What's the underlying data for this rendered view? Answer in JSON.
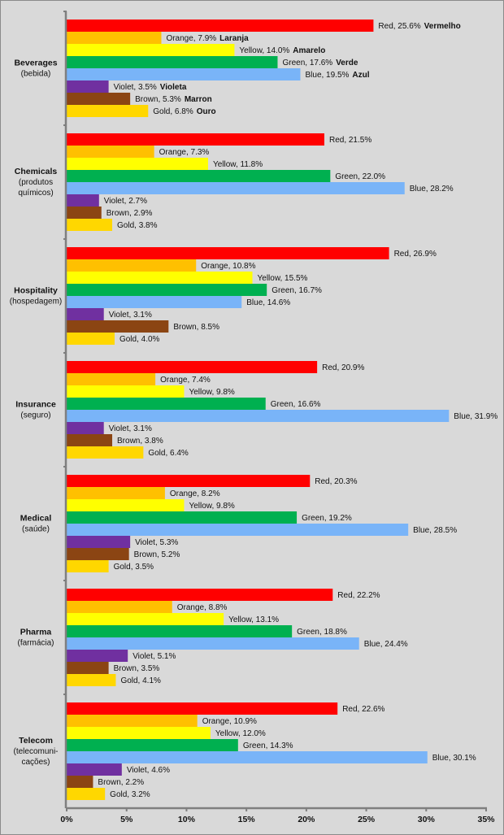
{
  "chart_data": {
    "type": "bar",
    "orientation": "horizontal",
    "title": "",
    "xlabel": "",
    "ylabel": "",
    "xlim": [
      0,
      35
    ],
    "x_tick_labels": [
      "0%",
      "5%",
      "10%",
      "15%",
      "20%",
      "25%",
      "30%",
      "35%"
    ],
    "grid": false,
    "legend": "none (inline data labels)",
    "series_colors": {
      "Red": "#ff0000",
      "Orange": "#ffc000",
      "Yellow": "#ffff00",
      "Green": "#00b050",
      "Blue": "#79b4f8",
      "Violet": "#7030a0",
      "Brown": "#8b4513",
      "Gold": "#ffd700"
    },
    "series_portuguese": {
      "Red": "Vermelho",
      "Orange": "Laranja",
      "Yellow": "Amarelo",
      "Green": "Verde",
      "Blue": "Azul",
      "Violet": "Violeta",
      "Brown": "Marron",
      "Gold": "Ouro"
    },
    "categories": [
      {
        "name": "Beverages",
        "sub": [
          "(bebida)"
        ],
        "show_portuguese": true,
        "values": [
          {
            "series": "Red",
            "value": 25.6,
            "label": "Red, 25.6%"
          },
          {
            "series": "Orange",
            "value": 7.9,
            "label": "Orange, 7.9%"
          },
          {
            "series": "Yellow",
            "value": 14.0,
            "label": "Yellow, 14.0%"
          },
          {
            "series": "Green",
            "value": 17.6,
            "label": "Green,  17.6%"
          },
          {
            "series": "Blue",
            "value": 19.5,
            "label": "Blue, 19.5%"
          },
          {
            "series": "Violet",
            "value": 3.5,
            "label": "Violet, 3.5%"
          },
          {
            "series": "Brown",
            "value": 5.3,
            "label": "Brown, 5.3%"
          },
          {
            "series": "Gold",
            "value": 6.8,
            "label": "Gold, 6.8%"
          }
        ]
      },
      {
        "name": "Chemicals",
        "sub": [
          "(produtos",
          "químicos)"
        ],
        "show_portuguese": false,
        "values": [
          {
            "series": "Red",
            "value": 21.5,
            "label": "Red, 21.5%"
          },
          {
            "series": "Orange",
            "value": 7.3,
            "label": "Orange, 7.3%"
          },
          {
            "series": "Yellow",
            "value": 11.8,
            "label": "Yellow, 11.8%"
          },
          {
            "series": "Green",
            "value": 22.0,
            "label": "Green,  22.0%"
          },
          {
            "series": "Blue",
            "value": 28.2,
            "label": "Blue, 28.2%"
          },
          {
            "series": "Violet",
            "value": 2.7,
            "label": "Violet, 2.7%"
          },
          {
            "series": "Brown",
            "value": 2.9,
            "label": "Brown, 2.9%"
          },
          {
            "series": "Gold",
            "value": 3.8,
            "label": "Gold, 3.8%"
          }
        ]
      },
      {
        "name": "Hospitality",
        "sub": [
          "(hospedagem)"
        ],
        "show_portuguese": false,
        "values": [
          {
            "series": "Red",
            "value": 26.9,
            "label": "Red, 26.9%"
          },
          {
            "series": "Orange",
            "value": 10.8,
            "label": "Orange, 10.8%"
          },
          {
            "series": "Yellow",
            "value": 15.5,
            "label": "Yellow, 15.5%"
          },
          {
            "series": "Green",
            "value": 16.7,
            "label": "Green,  16.7%"
          },
          {
            "series": "Blue",
            "value": 14.6,
            "label": "Blue, 14.6%"
          },
          {
            "series": "Violet",
            "value": 3.1,
            "label": "Violet, 3.1%"
          },
          {
            "series": "Brown",
            "value": 8.5,
            "label": "Brown, 8.5%"
          },
          {
            "series": "Gold",
            "value": 4.0,
            "label": "Gold, 4.0%"
          }
        ]
      },
      {
        "name": "Insurance",
        "sub": [
          "(seguro)"
        ],
        "show_portuguese": false,
        "values": [
          {
            "series": "Red",
            "value": 20.9,
            "label": "Red, 20.9%"
          },
          {
            "series": "Orange",
            "value": 7.4,
            "label": "Orange, 7.4%"
          },
          {
            "series": "Yellow",
            "value": 9.8,
            "label": "Yellow, 9.8%"
          },
          {
            "series": "Green",
            "value": 16.6,
            "label": "Green,  16.6%"
          },
          {
            "series": "Blue",
            "value": 31.9,
            "label": "Blue, 31.9%"
          },
          {
            "series": "Violet",
            "value": 3.1,
            "label": "Violet, 3.1%"
          },
          {
            "series": "Brown",
            "value": 3.8,
            "label": "Brown, 3.8%"
          },
          {
            "series": "Gold",
            "value": 6.4,
            "label": "Gold, 6.4%"
          }
        ]
      },
      {
        "name": "Medical",
        "sub": [
          "(saúde)"
        ],
        "show_portuguese": false,
        "values": [
          {
            "series": "Red",
            "value": 20.3,
            "label": "Red, 20.3%"
          },
          {
            "series": "Orange",
            "value": 8.2,
            "label": "Orange, 8.2%"
          },
          {
            "series": "Yellow",
            "value": 9.8,
            "label": "Yellow, 9.8%"
          },
          {
            "series": "Green",
            "value": 19.2,
            "label": "Green,  19.2%"
          },
          {
            "series": "Blue",
            "value": 28.5,
            "label": "Blue, 28.5%"
          },
          {
            "series": "Violet",
            "value": 5.3,
            "label": "Violet, 5.3%"
          },
          {
            "series": "Brown",
            "value": 5.2,
            "label": "Brown, 5.2%"
          },
          {
            "series": "Gold",
            "value": 3.5,
            "label": "Gold, 3.5%"
          }
        ]
      },
      {
        "name": "Pharma",
        "sub": [
          "(farmácia)"
        ],
        "show_portuguese": false,
        "values": [
          {
            "series": "Red",
            "value": 22.2,
            "label": "Red, 22.2%"
          },
          {
            "series": "Orange",
            "value": 8.8,
            "label": "Orange, 8.8%"
          },
          {
            "series": "Yellow",
            "value": 13.1,
            "label": "Yellow, 13.1%"
          },
          {
            "series": "Green",
            "value": 18.8,
            "label": "Green,  18.8%"
          },
          {
            "series": "Blue",
            "value": 24.4,
            "label": "Blue, 24.4%"
          },
          {
            "series": "Violet",
            "value": 5.1,
            "label": "Violet, 5.1%"
          },
          {
            "series": "Brown",
            "value": 3.5,
            "label": "Brown, 3.5%"
          },
          {
            "series": "Gold",
            "value": 4.1,
            "label": "Gold, 4.1%"
          }
        ]
      },
      {
        "name": "Telecom",
        "sub": [
          "(telecomuni-",
          "cações)"
        ],
        "show_portuguese": false,
        "values": [
          {
            "series": "Red",
            "value": 22.6,
            "label": "Red, 22.6%"
          },
          {
            "series": "Orange",
            "value": 10.9,
            "label": "Orange, 10.9%"
          },
          {
            "series": "Yellow",
            "value": 12.0,
            "label": "Yellow, 12.0%"
          },
          {
            "series": "Green",
            "value": 14.3,
            "label": "Green, 14.3%"
          },
          {
            "series": "Blue",
            "value": 30.1,
            "label": "Blue, 30.1%"
          },
          {
            "series": "Violet",
            "value": 4.6,
            "label": "Violet, 4.6%"
          },
          {
            "series": "Brown",
            "value": 2.2,
            "label": "Brown, 2.2%"
          },
          {
            "series": "Gold",
            "value": 3.2,
            "label": "Gold, 3.2%"
          }
        ]
      }
    ]
  }
}
